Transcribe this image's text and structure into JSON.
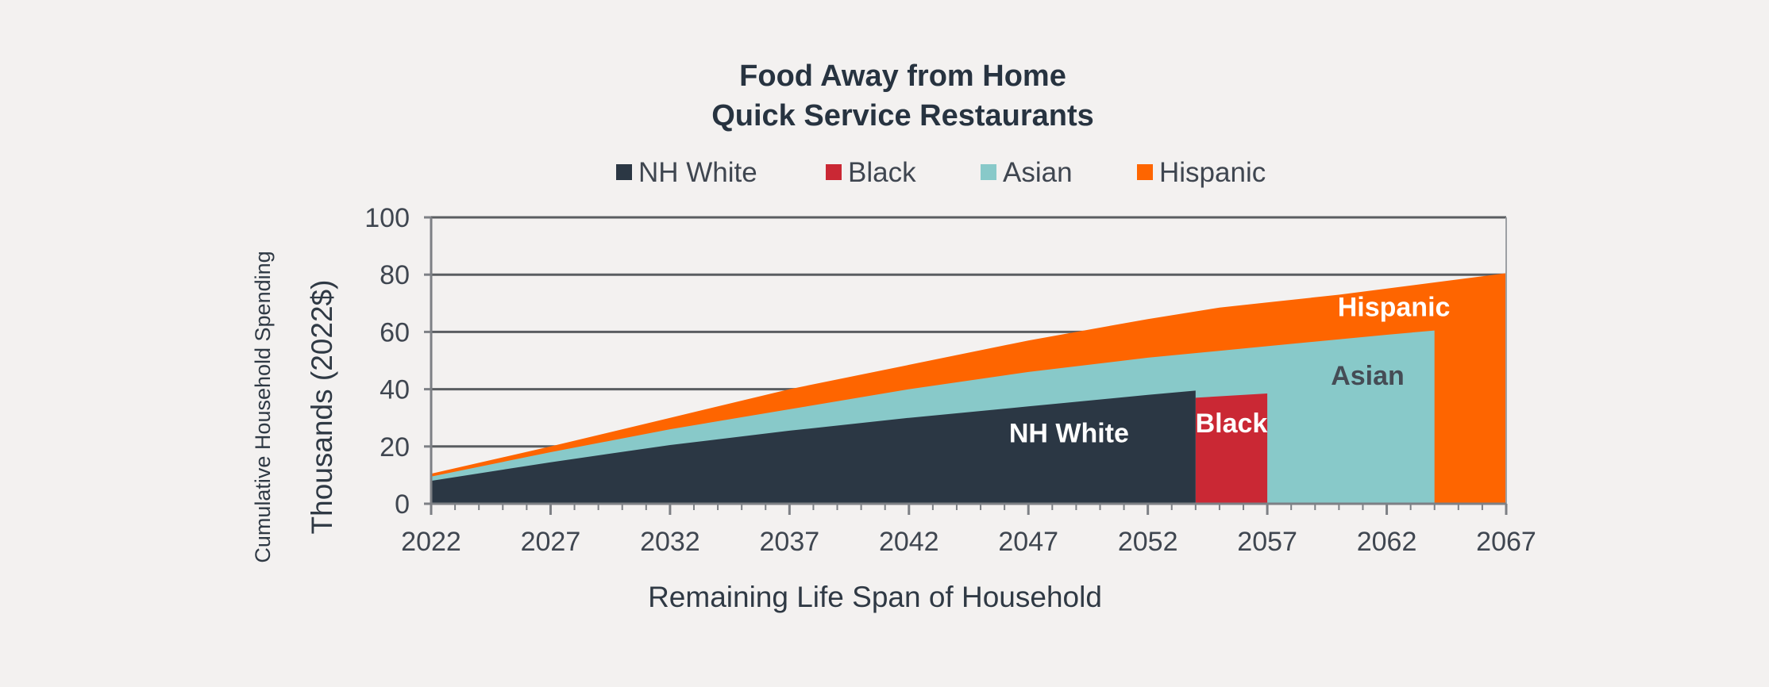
{
  "chart_data": {
    "type": "area",
    "title_lines": [
      "Food Away from Home",
      "Quick Service Restaurants"
    ],
    "xlabel": "Remaining Life Span of Household",
    "ylabel_lines": [
      "Cumulative Household Spending",
      "Thousands (2022$)"
    ],
    "xlim": [
      2022,
      2067
    ],
    "ylim": [
      0,
      100
    ],
    "x_ticks": [
      "2022",
      "2027",
      "2032",
      "2037",
      "2042",
      "2047",
      "2052",
      "2057",
      "2062",
      "2067"
    ],
    "y_ticks": [
      "0",
      "20",
      "40",
      "60",
      "80",
      "100"
    ],
    "grid": true,
    "legend_position": "top",
    "series": [
      {
        "name": "Hispanic",
        "color": "#fe6500",
        "label_color": "#ffffff",
        "x": [
          2022,
          2027,
          2032,
          2037,
          2042,
          2047,
          2052,
          2055,
          2060,
          2067
        ],
        "values": [
          10.5,
          20,
          30,
          40,
          48.5,
          57,
          64.5,
          68.5,
          73,
          80.5
        ]
      },
      {
        "name": "Asian",
        "color": "#88c9c9",
        "label_color": "#454c55",
        "x": [
          2022,
          2027,
          2032,
          2037,
          2042,
          2047,
          2052,
          2057,
          2062,
          2064
        ],
        "values": [
          9.5,
          18,
          26,
          33,
          40,
          46,
          51,
          55,
          59,
          60.5
        ]
      },
      {
        "name": "Black",
        "color": "#ca2834",
        "label_color": "#ffffff",
        "x": [
          2054,
          2057
        ],
        "values": [
          37,
          38.5
        ]
      },
      {
        "name": "NH White",
        "color": "#2b3744",
        "label_color": "#ffffff",
        "x": [
          2022,
          2027,
          2032,
          2037,
          2042,
          2047,
          2052,
          2054
        ],
        "values": [
          8,
          14.5,
          20.5,
          25.5,
          30,
          34,
          38,
          39.5
        ]
      }
    ],
    "legend": [
      "NH White",
      "Black",
      "Asian",
      "Hispanic"
    ],
    "area_labels": [
      {
        "series": "Hispanic",
        "text": "Hispanic",
        "x": 2062.3,
        "y": 65.5
      },
      {
        "series": "Asian",
        "text": "Asian",
        "x": 2061.2,
        "y": 41.5
      },
      {
        "series": "Black",
        "text": "Black",
        "x": 2055.5,
        "y": 25
      },
      {
        "series": "NH White",
        "text": "NH White",
        "x": 2048.7,
        "y": 21.5
      }
    ]
  }
}
